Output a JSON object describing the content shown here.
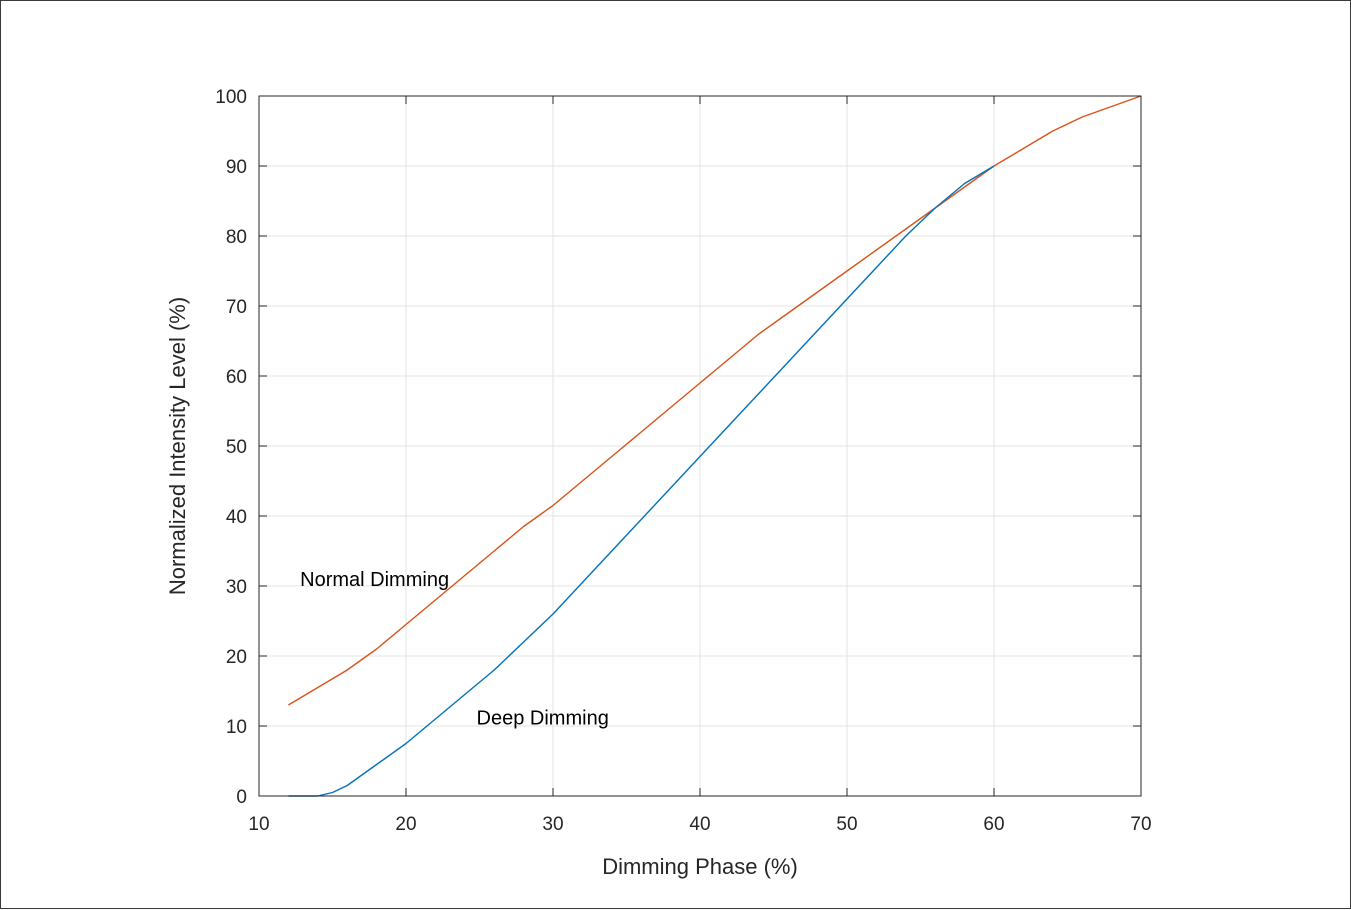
{
  "chart_data": {
    "type": "line",
    "title": "",
    "xlabel": "Dimming Phase (%)",
    "ylabel": "Normalized Intensity Level (%)",
    "xlim": [
      10,
      70
    ],
    "ylim": [
      0,
      100
    ],
    "xticks": [
      10,
      20,
      30,
      40,
      50,
      60,
      70
    ],
    "yticks": [
      0,
      10,
      20,
      30,
      40,
      50,
      60,
      70,
      80,
      90,
      100
    ],
    "grid": true,
    "colors": {
      "normal": "#D95319",
      "deep": "#0072BD",
      "grid": "#e3e3e3",
      "axes": "#262626"
    },
    "series": [
      {
        "key": "normal",
        "x": [
          12,
          14,
          16,
          18,
          20,
          22,
          24,
          26,
          28,
          30,
          32,
          34,
          36,
          38,
          40,
          42,
          44,
          46,
          48,
          50,
          52,
          54,
          56,
          58,
          60,
          62,
          64,
          66,
          68,
          70
        ],
        "y": [
          13,
          15.5,
          18,
          21,
          24.5,
          28,
          31.5,
          35,
          38.5,
          41.5,
          45,
          48.5,
          52,
          55.5,
          59,
          62.5,
          66,
          69,
          72,
          75,
          78,
          81,
          84,
          87,
          90,
          92.5,
          95,
          97,
          98.5,
          100
        ]
      },
      {
        "key": "deep",
        "x": [
          12,
          14,
          15,
          16,
          18,
          20,
          22,
          24,
          26,
          28,
          30,
          32,
          34,
          36,
          38,
          40,
          42,
          44,
          46,
          48,
          50,
          52,
          54,
          56,
          58,
          60
        ],
        "y": [
          0,
          0,
          0.5,
          1.5,
          4.5,
          7.5,
          11,
          14.5,
          18,
          22,
          26,
          30.5,
          35,
          39.5,
          44,
          48.5,
          53,
          57.5,
          62,
          66.5,
          71,
          75.5,
          80,
          84,
          87.5,
          90
        ]
      }
    ],
    "annotations": [
      {
        "text": "Normal Dimming",
        "x": 12.8,
        "y": 31
      },
      {
        "text": "Deep Dimming",
        "x": 24.8,
        "y": 11.2
      }
    ]
  }
}
